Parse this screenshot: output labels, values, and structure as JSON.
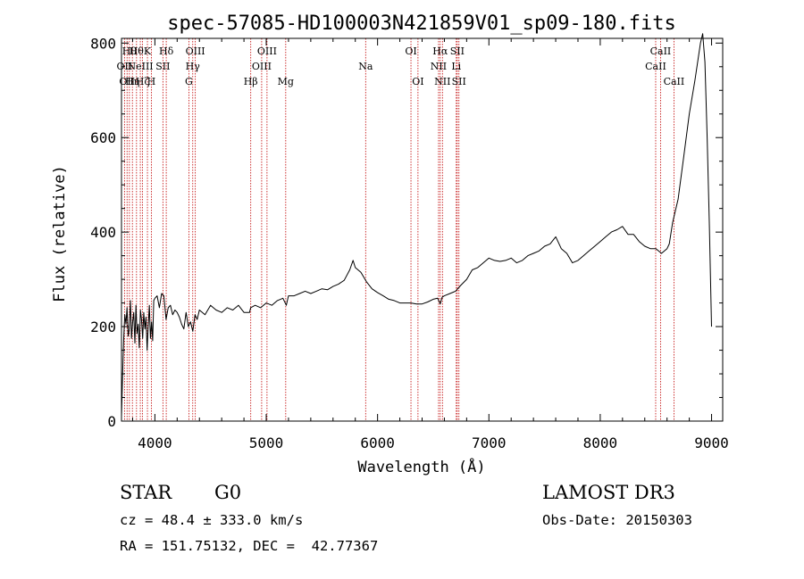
{
  "chart_data": {
    "type": "line",
    "title": "spec-57085-HD100003N421859V01_sp09-180.fits",
    "xlabel": "Wavelength (Å)",
    "ylabel": "Flux (relative)",
    "xlim": [
      3700,
      9100
    ],
    "ylim": [
      0,
      810
    ],
    "xticks": [
      4000,
      5000,
      6000,
      7000,
      8000,
      9000
    ],
    "yticks": [
      0,
      200,
      400,
      600,
      800
    ],
    "grid": false,
    "line_color": "#000000",
    "marker_color": "#c00000",
    "spectrum": {
      "x": [
        3700,
        3710,
        3720,
        3730,
        3740,
        3750,
        3760,
        3770,
        3780,
        3790,
        3800,
        3810,
        3820,
        3830,
        3840,
        3850,
        3860,
        3870,
        3880,
        3890,
        3900,
        3910,
        3920,
        3930,
        3940,
        3950,
        3960,
        3970,
        3980,
        3990,
        4000,
        4020,
        4040,
        4060,
        4080,
        4100,
        4120,
        4140,
        4160,
        4180,
        4200,
        4220,
        4240,
        4260,
        4280,
        4300,
        4320,
        4340,
        4360,
        4380,
        4400,
        4450,
        4500,
        4550,
        4600,
        4650,
        4700,
        4750,
        4800,
        4850,
        4860,
        4900,
        4950,
        5000,
        5050,
        5100,
        5150,
        5180,
        5200,
        5250,
        5300,
        5350,
        5400,
        5450,
        5500,
        5550,
        5600,
        5650,
        5700,
        5750,
        5780,
        5800,
        5850,
        5900,
        5950,
        6000,
        6050,
        6100,
        6150,
        6200,
        6250,
        6300,
        6350,
        6400,
        6450,
        6500,
        6540,
        6563,
        6580,
        6600,
        6650,
        6700,
        6750,
        6800,
        6850,
        6900,
        6950,
        7000,
        7050,
        7100,
        7150,
        7200,
        7250,
        7300,
        7350,
        7400,
        7450,
        7500,
        7550,
        7600,
        7650,
        7700,
        7750,
        7800,
        7850,
        7900,
        7950,
        8000,
        8050,
        8100,
        8150,
        8200,
        8250,
        8300,
        8350,
        8400,
        8450,
        8500,
        8550,
        8600,
        8620,
        8650,
        8700,
        8750,
        8800,
        8850,
        8900,
        8920,
        8940,
        8960,
        8980,
        9000
      ],
      "y": [
        10,
        95,
        175,
        225,
        205,
        240,
        180,
        195,
        255,
        175,
        210,
        230,
        165,
        245,
        185,
        205,
        155,
        235,
        215,
        175,
        230,
        195,
        220,
        150,
        200,
        245,
        175,
        210,
        170,
        255,
        260,
        265,
        240,
        270,
        265,
        215,
        240,
        245,
        225,
        235,
        230,
        220,
        205,
        195,
        230,
        200,
        210,
        190,
        225,
        215,
        235,
        225,
        245,
        235,
        230,
        240,
        235,
        245,
        230,
        230,
        240,
        245,
        240,
        250,
        245,
        255,
        260,
        245,
        265,
        265,
        270,
        275,
        270,
        275,
        280,
        278,
        285,
        290,
        298,
        320,
        340,
        325,
        315,
        295,
        280,
        272,
        265,
        258,
        255,
        250,
        250,
        250,
        248,
        248,
        252,
        258,
        260,
        248,
        262,
        265,
        270,
        275,
        288,
        300,
        320,
        325,
        335,
        345,
        340,
        338,
        340,
        345,
        335,
        340,
        350,
        355,
        360,
        370,
        375,
        390,
        365,
        355,
        335,
        340,
        350,
        360,
        370,
        380,
        390,
        400,
        405,
        412,
        395,
        395,
        380,
        370,
        365,
        365,
        355,
        365,
        375,
        420,
        470,
        560,
        650,
        720,
        800,
        820,
        760,
        600,
        420,
        200
      ]
    },
    "lines": [
      {
        "wl": 3727,
        "label": "OII",
        "row": 2
      },
      {
        "wl": 3750,
        "label": "OII",
        "row": 3
      },
      {
        "wl": 3771,
        "label": "Hθ",
        "row": 1
      },
      {
        "wl": 3798,
        "label": "Hη",
        "row": 3
      },
      {
        "wl": 3835,
        "label": "Hθ",
        "row": 1
      },
      {
        "wl": 3869,
        "label": "NeIII",
        "row": 2
      },
      {
        "wl": 3889,
        "label": "Hζ",
        "row": 3
      },
      {
        "wl": 3933,
        "label": "K",
        "row": 1
      },
      {
        "wl": 3968,
        "label": "H",
        "row": 3
      },
      {
        "wl": 4072,
        "label": "SII",
        "row": 2
      },
      {
        "wl": 4102,
        "label": "Hδ",
        "row": 1
      },
      {
        "wl": 4305,
        "label": "G",
        "row": 3
      },
      {
        "wl": 4340,
        "label": "Hγ",
        "row": 2
      },
      {
        "wl": 4363,
        "label": "OIII",
        "row": 1
      },
      {
        "wl": 4861,
        "label": "Hβ",
        "row": 3
      },
      {
        "wl": 4959,
        "label": "OIII",
        "row": 2
      },
      {
        "wl": 5007,
        "label": "OIII",
        "row": 1
      },
      {
        "wl": 5175,
        "label": "Mg",
        "row": 3
      },
      {
        "wl": 5893,
        "label": "Na",
        "row": 2
      },
      {
        "wl": 6300,
        "label": "OI",
        "row": 1
      },
      {
        "wl": 6363,
        "label": "OI",
        "row": 3
      },
      {
        "wl": 6548,
        "label": "NII",
        "row": 2
      },
      {
        "wl": 6563,
        "label": "Hα",
        "row": 1
      },
      {
        "wl": 6583,
        "label": "NII",
        "row": 3
      },
      {
        "wl": 6707,
        "label": "Li",
        "row": 2
      },
      {
        "wl": 6716,
        "label": "SII",
        "row": 1
      },
      {
        "wl": 6731,
        "label": "SII",
        "row": 3
      },
      {
        "wl": 8498,
        "label": "CaII",
        "row": 2
      },
      {
        "wl": 8542,
        "label": "CaII",
        "row": 1
      },
      {
        "wl": 8662,
        "label": "CaII",
        "row": 3
      }
    ]
  },
  "info": {
    "object_type": "STAR",
    "subclass": "G0",
    "survey": "LAMOST DR3",
    "redshift": "cz = 48.4 ± 333.0 km/s",
    "obs_date": "Obs-Date: 20150303",
    "coords": "RA = 151.75132, DEC =  42.77367"
  }
}
